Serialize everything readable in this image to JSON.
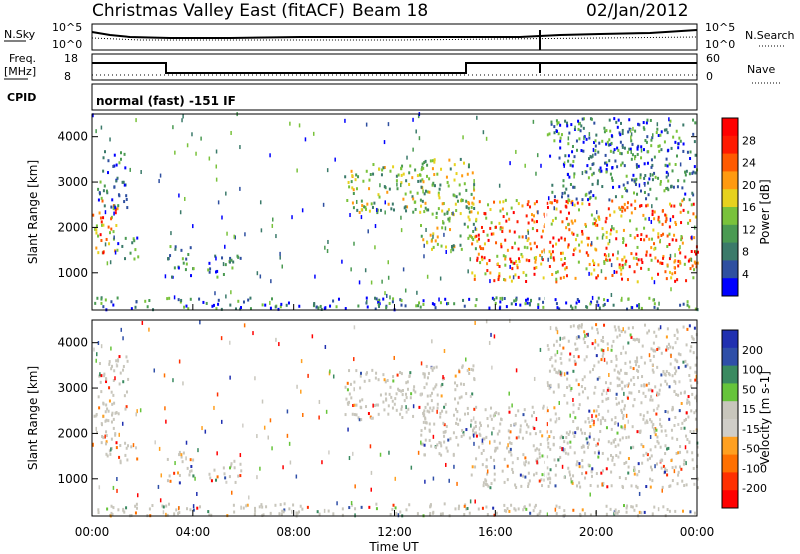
{
  "header": {
    "station": "Christmas Valley East (fitACF)",
    "beam": "Beam 18",
    "date": "02/Jan/2012"
  },
  "top_panels": {
    "nsky_label": "N.Sky",
    "nsearch_label": "N.Search",
    "nsky_ticks": [
      "10^5",
      "10^0"
    ],
    "nsearch_ticks": [
      "10^5",
      "10^0"
    ],
    "freq_label_1": "Freq.",
    "freq_label_2": "[MHz]",
    "freq_ticks": [
      "18",
      "8"
    ],
    "nave_label": "Nave",
    "nave_ticks": [
      "60",
      "0"
    ],
    "cpid_label": "CPID",
    "cpid_text": "normal (fast) -151 IF"
  },
  "colors": {
    "power_scale": [
      "#0000ff",
      "#2e4fa0",
      "#3b7a6a",
      "#4a9a52",
      "#79c23b",
      "#e6d21e",
      "#ff9a10",
      "#ff5a00",
      "#ff1a00",
      "#ff0000"
    ],
    "velocity_scale": [
      "#2030b0",
      "#2f4fa8",
      "#3a8a60",
      "#66c43a",
      "#c8c6bc",
      "#d0cec8",
      "#ffa020",
      "#ff7000",
      "#ff3000",
      "#ff0000"
    ],
    "grey_velocity": "#c8c6bc"
  },
  "chart_data": [
    {
      "type": "heatmap",
      "name": "power",
      "ylabel": "Slant Range [km]",
      "xlabel": "",
      "ylim": [
        180,
        4500
      ],
      "xlim_hours": [
        0,
        24
      ],
      "ytick_labels": [
        "1000",
        "2000",
        "3000",
        "4000"
      ],
      "colorbar_label": "Power [dB]",
      "colorbar_ticks": [
        "4",
        "8",
        "12",
        "16",
        "20",
        "24",
        "28"
      ],
      "features": [
        {
          "t": [
            0.0,
            1.0
          ],
          "range": [
            1400,
            2600
          ],
          "level": "high"
        },
        {
          "t": [
            0.2,
            1.4
          ],
          "range": [
            2400,
            3700
          ],
          "level": "low"
        },
        {
          "t": [
            1.0,
            1.8
          ],
          "range": [
            1300,
            1800
          ],
          "level": "low"
        },
        {
          "t": [
            2.9,
            4.0
          ],
          "range": [
            900,
            1600
          ],
          "level": "low"
        },
        {
          "t": [
            4.5,
            5.9
          ],
          "range": [
            900,
            1400
          ],
          "level": "low"
        },
        {
          "t": [
            10.0,
            13.2
          ],
          "range": [
            2300,
            3400
          ],
          "level": "mid"
        },
        {
          "t": [
            13.0,
            15.2
          ],
          "range": [
            1500,
            3500
          ],
          "level": "mid"
        },
        {
          "t": [
            15.0,
            24.0
          ],
          "range": [
            800,
            2600
          ],
          "level": "high"
        },
        {
          "t": [
            18.0,
            24.0
          ],
          "range": [
            2600,
            4400
          ],
          "level": "low"
        },
        {
          "t": [
            0.0,
            24.0
          ],
          "range": [
            180,
            450
          ],
          "level": "low"
        }
      ]
    },
    {
      "type": "heatmap",
      "name": "velocity",
      "ylabel": "Slant Range [km]",
      "xlabel": "Time UT",
      "ylim": [
        180,
        4500
      ],
      "xlim_hours": [
        0,
        24
      ],
      "ytick_labels": [
        "1000",
        "2000",
        "3000",
        "4000"
      ],
      "xtick_labels": [
        "00:00",
        "04:00",
        "08:00",
        "12:00",
        "16:00",
        "20:00",
        "00:00"
      ],
      "colorbar_label": "Velocity [m s-1]",
      "colorbar_ticks": [
        "200",
        "100",
        "50",
        "15",
        "-15",
        "-50",
        "-100",
        "-200"
      ]
    }
  ]
}
